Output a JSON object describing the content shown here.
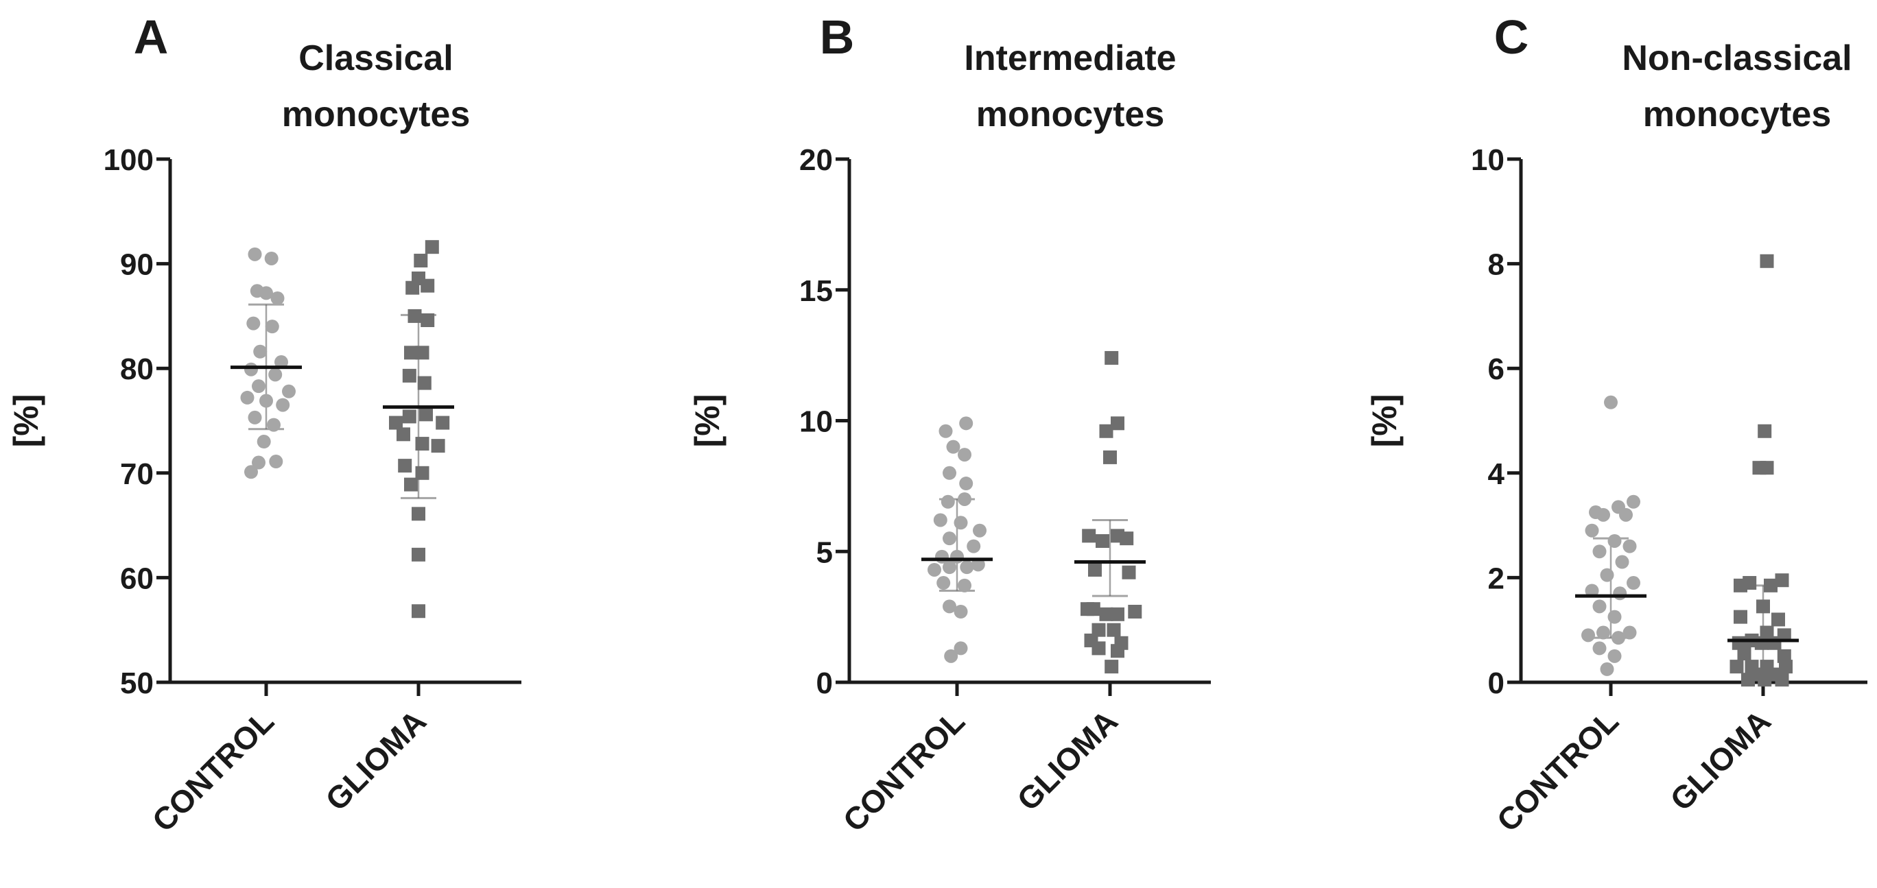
{
  "chart_data": [
    {
      "type": "scatter",
      "panel_label": "A",
      "title_lines": [
        "Classical",
        "monocytes"
      ],
      "ylabel": "[%]",
      "ylim": [
        50,
        100
      ],
      "yticks": [
        50,
        60,
        70,
        80,
        90,
        100
      ],
      "categories": [
        "CONTROL",
        "GLIOMA"
      ],
      "series": [
        {
          "category": "CONTROL",
          "marker": "circle",
          "color": "#a6a6a6",
          "median": 80.1,
          "err_low": 74.2,
          "err_high": 86.1,
          "points": [
            {
              "offset": -0.15,
              "y": 90.9
            },
            {
              "offset": 0.07,
              "y": 90.5
            },
            {
              "offset": -0.12,
              "y": 87.4
            },
            {
              "offset": 0.0,
              "y": 87.2
            },
            {
              "offset": 0.15,
              "y": 86.7
            },
            {
              "offset": -0.17,
              "y": 84.3
            },
            {
              "offset": 0.08,
              "y": 84.0
            },
            {
              "offset": -0.08,
              "y": 81.6
            },
            {
              "offset": 0.2,
              "y": 80.6
            },
            {
              "offset": -0.2,
              "y": 79.9
            },
            {
              "offset": 0.12,
              "y": 79.4
            },
            {
              "offset": -0.1,
              "y": 78.3
            },
            {
              "offset": 0.3,
              "y": 77.8
            },
            {
              "offset": -0.25,
              "y": 77.2
            },
            {
              "offset": 0.0,
              "y": 76.9
            },
            {
              "offset": 0.22,
              "y": 76.5
            },
            {
              "offset": -0.15,
              "y": 75.3
            },
            {
              "offset": 0.1,
              "y": 74.6
            },
            {
              "offset": -0.03,
              "y": 73.0
            },
            {
              "offset": -0.1,
              "y": 71.0
            },
            {
              "offset": 0.13,
              "y": 71.1
            },
            {
              "offset": -0.2,
              "y": 70.1
            }
          ]
        },
        {
          "category": "GLIOMA",
          "marker": "square",
          "color": "#6e6e6e",
          "median": 76.3,
          "err_low": 67.6,
          "err_high": 85.1,
          "points": [
            {
              "offset": 0.18,
              "y": 91.6
            },
            {
              "offset": 0.03,
              "y": 90.3
            },
            {
              "offset": 0.0,
              "y": 88.6
            },
            {
              "offset": -0.08,
              "y": 87.7
            },
            {
              "offset": 0.12,
              "y": 87.9
            },
            {
              "offset": -0.05,
              "y": 85.0
            },
            {
              "offset": 0.12,
              "y": 84.6
            },
            {
              "offset": -0.1,
              "y": 81.5
            },
            {
              "offset": 0.05,
              "y": 81.5
            },
            {
              "offset": -0.12,
              "y": 79.3
            },
            {
              "offset": 0.08,
              "y": 78.6
            },
            {
              "offset": -0.3,
              "y": 74.8
            },
            {
              "offset": -0.12,
              "y": 75.4
            },
            {
              "offset": 0.1,
              "y": 75.6
            },
            {
              "offset": 0.32,
              "y": 74.8
            },
            {
              "offset": -0.2,
              "y": 73.7
            },
            {
              "offset": 0.05,
              "y": 72.8
            },
            {
              "offset": 0.26,
              "y": 72.6
            },
            {
              "offset": -0.18,
              "y": 70.7
            },
            {
              "offset": 0.05,
              "y": 70.0
            },
            {
              "offset": -0.1,
              "y": 68.9
            },
            {
              "offset": 0.0,
              "y": 66.1
            },
            {
              "offset": 0.0,
              "y": 62.2
            },
            {
              "offset": 0.0,
              "y": 56.8
            }
          ]
        }
      ]
    },
    {
      "type": "scatter",
      "panel_label": "B",
      "title_lines": [
        "Intermediate",
        "monocytes"
      ],
      "ylabel": "[%]",
      "ylim": [
        0,
        20
      ],
      "yticks": [
        0,
        5,
        10,
        15,
        20
      ],
      "categories": [
        "CONTROL",
        "GLIOMA"
      ],
      "series": [
        {
          "category": "CONTROL",
          "marker": "circle",
          "color": "#a6a6a6",
          "median": 4.7,
          "err_low": 3.5,
          "err_high": 7.0,
          "points": [
            {
              "offset": -0.15,
              "y": 9.6
            },
            {
              "offset": 0.12,
              "y": 9.9
            },
            {
              "offset": -0.05,
              "y": 9.0
            },
            {
              "offset": 0.1,
              "y": 8.7
            },
            {
              "offset": -0.1,
              "y": 8.0
            },
            {
              "offset": 0.12,
              "y": 7.6
            },
            {
              "offset": -0.12,
              "y": 6.9
            },
            {
              "offset": 0.1,
              "y": 7.0
            },
            {
              "offset": -0.22,
              "y": 6.2
            },
            {
              "offset": 0.05,
              "y": 6.1
            },
            {
              "offset": 0.3,
              "y": 5.8
            },
            {
              "offset": -0.1,
              "y": 5.5
            },
            {
              "offset": 0.22,
              "y": 5.2
            },
            {
              "offset": -0.2,
              "y": 4.8
            },
            {
              "offset": 0.0,
              "y": 4.8
            },
            {
              "offset": -0.3,
              "y": 4.3
            },
            {
              "offset": -0.1,
              "y": 4.4
            },
            {
              "offset": 0.13,
              "y": 4.4
            },
            {
              "offset": 0.28,
              "y": 4.5
            },
            {
              "offset": -0.18,
              "y": 3.8
            },
            {
              "offset": 0.1,
              "y": 3.7
            },
            {
              "offset": -0.1,
              "y": 2.9
            },
            {
              "offset": 0.05,
              "y": 2.7
            },
            {
              "offset": 0.05,
              "y": 1.3
            },
            {
              "offset": -0.08,
              "y": 1.0
            }
          ]
        },
        {
          "category": "GLIOMA",
          "marker": "square",
          "color": "#6e6e6e",
          "median": 4.6,
          "err_low": 3.3,
          "err_high": 6.2,
          "points": [
            {
              "offset": 0.02,
              "y": 12.4
            },
            {
              "offset": -0.05,
              "y": 9.6
            },
            {
              "offset": 0.1,
              "y": 9.9
            },
            {
              "offset": 0.0,
              "y": 8.6
            },
            {
              "offset": -0.28,
              "y": 5.6
            },
            {
              "offset": -0.1,
              "y": 5.4
            },
            {
              "offset": 0.1,
              "y": 5.6
            },
            {
              "offset": 0.22,
              "y": 5.5
            },
            {
              "offset": -0.2,
              "y": 4.3
            },
            {
              "offset": 0.25,
              "y": 4.2
            },
            {
              "offset": -0.22,
              "y": 2.8
            },
            {
              "offset": -0.3,
              "y": 2.8
            },
            {
              "offset": -0.05,
              "y": 2.6
            },
            {
              "offset": 0.1,
              "y": 2.6
            },
            {
              "offset": 0.33,
              "y": 2.7
            },
            {
              "offset": -0.15,
              "y": 2.0
            },
            {
              "offset": 0.05,
              "y": 2.0
            },
            {
              "offset": -0.25,
              "y": 1.6
            },
            {
              "offset": 0.15,
              "y": 1.5
            },
            {
              "offset": -0.15,
              "y": 1.3
            },
            {
              "offset": 0.1,
              "y": 1.2
            },
            {
              "offset": 0.02,
              "y": 0.6
            }
          ]
        }
      ]
    },
    {
      "type": "scatter",
      "panel_label": "C",
      "title_lines": [
        "Non-classical",
        "monocytes"
      ],
      "ylabel": "[%]",
      "ylim": [
        0,
        10
      ],
      "yticks": [
        0,
        2,
        4,
        6,
        8,
        10
      ],
      "categories": [
        "CONTROL",
        "GLIOMA"
      ],
      "series": [
        {
          "category": "CONTROL",
          "marker": "circle",
          "color": "#a6a6a6",
          "median": 1.65,
          "err_low": 0.85,
          "err_high": 2.75,
          "points": [
            {
              "offset": 0.0,
              "y": 5.35
            },
            {
              "offset": 0.3,
              "y": 3.45
            },
            {
              "offset": 0.1,
              "y": 3.35
            },
            {
              "offset": -0.2,
              "y": 3.25
            },
            {
              "offset": -0.1,
              "y": 3.2
            },
            {
              "offset": 0.2,
              "y": 3.2
            },
            {
              "offset": -0.25,
              "y": 2.9
            },
            {
              "offset": 0.05,
              "y": 2.7
            },
            {
              "offset": 0.25,
              "y": 2.6
            },
            {
              "offset": -0.15,
              "y": 2.5
            },
            {
              "offset": 0.15,
              "y": 2.3
            },
            {
              "offset": -0.05,
              "y": 2.05
            },
            {
              "offset": 0.3,
              "y": 1.9
            },
            {
              "offset": -0.25,
              "y": 1.75
            },
            {
              "offset": 0.12,
              "y": 1.7
            },
            {
              "offset": -0.15,
              "y": 1.45
            },
            {
              "offset": 0.05,
              "y": 1.25
            },
            {
              "offset": -0.3,
              "y": 0.9
            },
            {
              "offset": -0.1,
              "y": 0.95
            },
            {
              "offset": 0.1,
              "y": 0.85
            },
            {
              "offset": 0.25,
              "y": 0.95
            },
            {
              "offset": -0.15,
              "y": 0.65
            },
            {
              "offset": 0.05,
              "y": 0.5
            },
            {
              "offset": -0.05,
              "y": 0.25
            }
          ]
        },
        {
          "category": "GLIOMA",
          "marker": "square",
          "color": "#6e6e6e",
          "median": 0.8,
          "err_low": 0.2,
          "err_high": 1.85,
          "points": [
            {
              "offset": 0.05,
              "y": 8.05
            },
            {
              "offset": 0.02,
              "y": 4.8
            },
            {
              "offset": -0.05,
              "y": 4.1
            },
            {
              "offset": 0.05,
              "y": 4.1
            },
            {
              "offset": 0.25,
              "y": 1.95
            },
            {
              "offset": -0.3,
              "y": 1.85
            },
            {
              "offset": -0.18,
              "y": 1.9
            },
            {
              "offset": 0.1,
              "y": 1.85
            },
            {
              "offset": 0.0,
              "y": 1.45
            },
            {
              "offset": -0.3,
              "y": 1.25
            },
            {
              "offset": 0.2,
              "y": 1.2
            },
            {
              "offset": 0.05,
              "y": 0.95
            },
            {
              "offset": 0.28,
              "y": 0.9
            },
            {
              "offset": -0.32,
              "y": 0.75
            },
            {
              "offset": -0.15,
              "y": 0.8
            },
            {
              "offset": -0.02,
              "y": 0.75
            },
            {
              "offset": 0.15,
              "y": 0.75
            },
            {
              "offset": -0.25,
              "y": 0.55
            },
            {
              "offset": 0.28,
              "y": 0.5
            },
            {
              "offset": -0.35,
              "y": 0.3
            },
            {
              "offset": -0.15,
              "y": 0.3
            },
            {
              "offset": 0.05,
              "y": 0.3
            },
            {
              "offset": 0.3,
              "y": 0.3
            },
            {
              "offset": -0.1,
              "y": 0.15
            },
            {
              "offset": 0.12,
              "y": 0.15
            },
            {
              "offset": -0.2,
              "y": 0.05
            },
            {
              "offset": 0.02,
              "y": 0.05
            },
            {
              "offset": 0.25,
              "y": 0.05
            }
          ]
        }
      ]
    }
  ]
}
